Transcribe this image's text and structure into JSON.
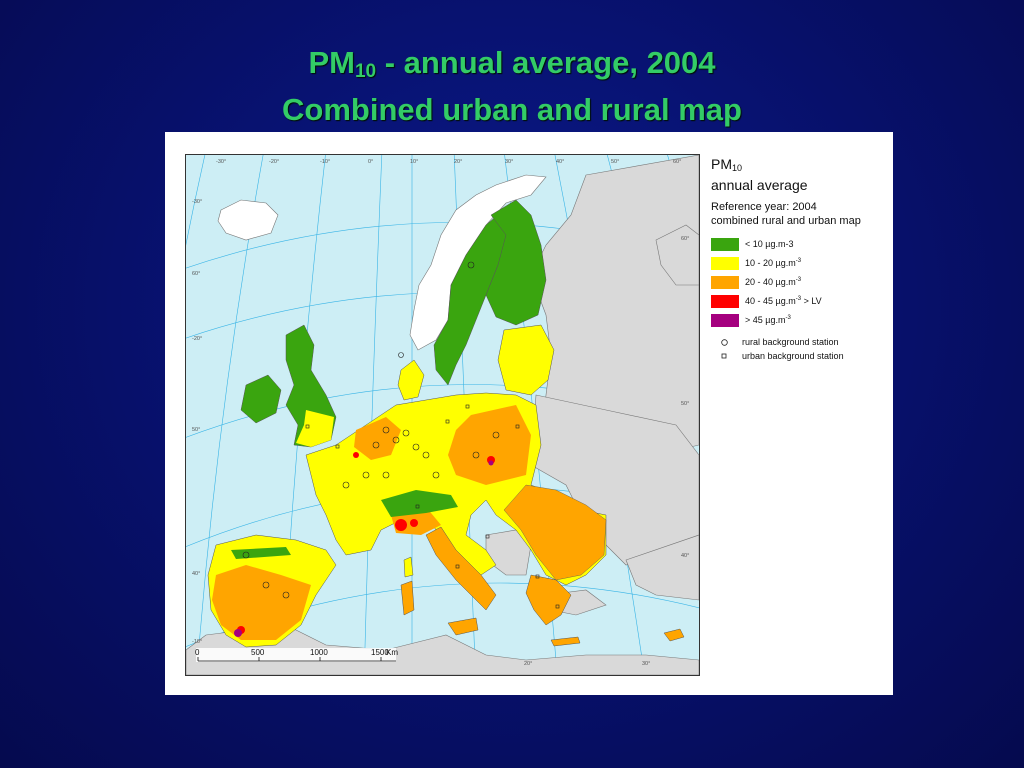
{
  "title": {
    "line1_prefix": "PM",
    "line1_sub": "10",
    "line1_rest": " -  annual average, 2004",
    "line2": "Combined urban and rural map"
  },
  "legend": {
    "title_prefix": "PM",
    "title_sub": "10",
    "title_line2": "annual average",
    "reference_line1": "Reference year: 2004",
    "reference_line2": "combined rural and urban map",
    "classes": [
      {
        "label": "<  10  µg.m-3",
        "sup": "",
        "suffix": "",
        "color": "#3aa50f"
      },
      {
        "label": "10 - 20  µg.m",
        "sup": "-3",
        "suffix": "",
        "color": "#ffff00"
      },
      {
        "label": "20 - 40  µg.m",
        "sup": "-3",
        "suffix": "",
        "color": "#ffa500"
      },
      {
        "label": "40 - 45  µg.m",
        "sup": "-3",
        "suffix": " > LV",
        "color": "#ff0000"
      },
      {
        "label": ">  45  µg.m",
        "sup": "-3",
        "suffix": "",
        "color": "#a5007f"
      }
    ],
    "stations": [
      {
        "label": "rural background station",
        "symbol": "circle-icon"
      },
      {
        "label": "urban background station",
        "symbol": "square-icon"
      }
    ]
  },
  "scale_bar": {
    "ticks": [
      "0",
      "500",
      "1000",
      "1500"
    ],
    "unit": "Km"
  },
  "graticule_labels": {
    "top": [
      "-30°",
      "-20°",
      "-10°",
      "0°",
      "10°",
      "20°",
      "30°",
      "40°",
      "50°",
      "60°"
    ],
    "left": [
      "-30°",
      "60°",
      "-20°",
      "50°",
      "40°",
      "-10°"
    ],
    "right": [
      "60°",
      "50°",
      "40°"
    ],
    "bottom": [
      "20°",
      "30°"
    ]
  },
  "colors": {
    "sea": "#cdeef5",
    "non_eu_land": "#d9d9d9",
    "borders": "#777777",
    "graticule": "#38b4e6"
  }
}
